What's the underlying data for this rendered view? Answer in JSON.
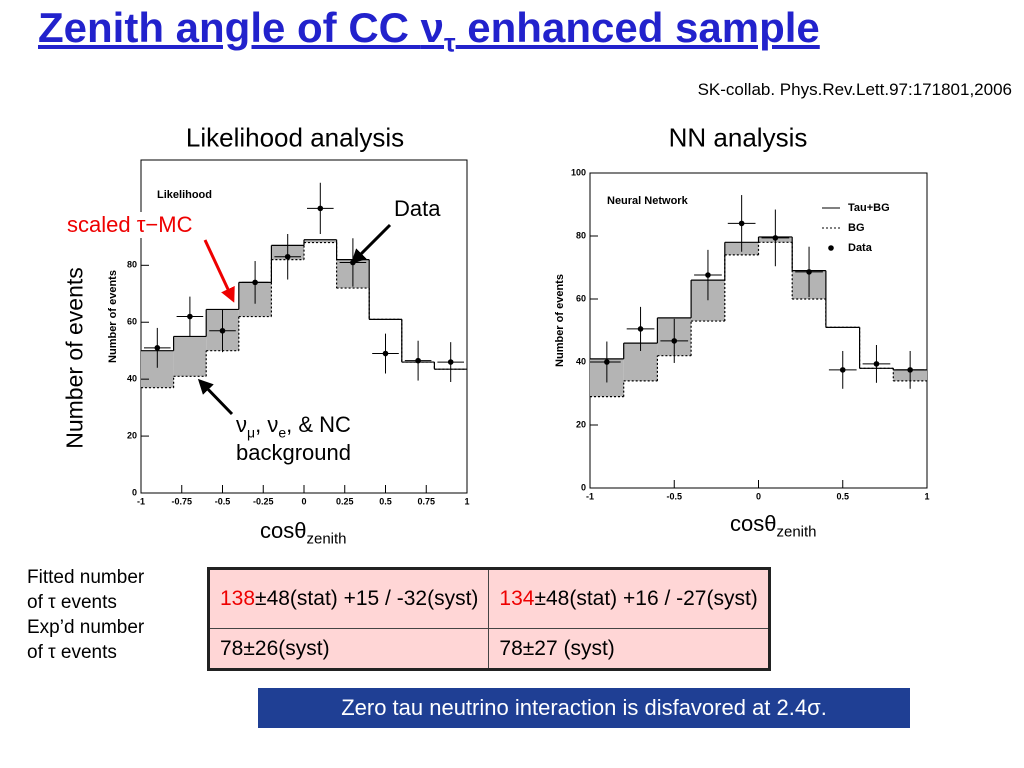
{
  "title": {
    "text": "Zenith angle of CC ",
    "symbol": "ν",
    "sub": "τ",
    "end": " enhanced sample"
  },
  "reference": "SK-collab. Phys.Rev.Lett.97:171801,2006",
  "ylabel_big": "Number of events",
  "annotations": {
    "scaled": "scaled τ−MC",
    "data": "Data",
    "bg_parts": [
      "ν",
      "μ",
      ", ν",
      "e",
      ", & NC"
    ],
    "bg_line2": "background"
  },
  "chart_data": [
    {
      "type": "histogram",
      "title": "Likelihood analysis",
      "inner_label": "Likelihood",
      "bins": [
        -1,
        -0.8,
        -0.6,
        -0.4,
        -0.2,
        0,
        0.2,
        0.4,
        0.6,
        0.8,
        1
      ],
      "xlim": [
        -1,
        1
      ],
      "xticks": [
        -1,
        -0.75,
        -0.5,
        -0.25,
        0,
        0.25,
        0.5,
        0.75,
        1
      ],
      "ylim": [
        0,
        117
      ],
      "yticks": [
        0,
        20,
        40,
        60,
        80
      ],
      "xlabel": "cosθ",
      "xlabel_sub": "zenith",
      "ylabel": "Number of events",
      "shade_color": "#b4b4b4",
      "legend": false,
      "series": [
        {
          "style": "solid",
          "values": [
            50,
            55,
            64.5,
            74,
            87,
            89,
            82,
            61,
            46,
            43.5
          ]
        },
        {
          "style": "dotted",
          "values": [
            37,
            41,
            50,
            62,
            82,
            88,
            72,
            61,
            46,
            43.5
          ]
        },
        {
          "style": "points",
          "values": [
            51,
            62,
            57,
            74,
            83,
            100,
            81,
            49,
            46.5,
            46
          ],
          "errors": [
            7,
            7,
            7.5,
            7.5,
            8,
            9,
            8.5,
            7,
            7,
            7
          ]
        }
      ]
    },
    {
      "type": "histogram",
      "title": "NN analysis",
      "inner_label": "Neural Network",
      "bins": [
        -1,
        -0.8,
        -0.6,
        -0.4,
        -0.2,
        0,
        0.2,
        0.4,
        0.6,
        0.8,
        1
      ],
      "xlim": [
        -1,
        1
      ],
      "xticks": [
        -1,
        -0.5,
        0,
        0.5,
        1
      ],
      "ylim": [
        0,
        100
      ],
      "yticks": [
        0,
        20,
        40,
        60,
        80,
        100
      ],
      "xlabel": "cosθ",
      "xlabel_sub": "zenith",
      "ylabel": "Number of events",
      "shade_color": "#b4b4b4",
      "legend": true,
      "series": [
        {
          "name": "Tau+BG",
          "style": "solid",
          "values": [
            41,
            46,
            54,
            66,
            78,
            79.7,
            69,
            51,
            38,
            37.5
          ]
        },
        {
          "name": "BG",
          "style": "dotted",
          "values": [
            29,
            34,
            42,
            53,
            74,
            78,
            60,
            51,
            38,
            34
          ]
        },
        {
          "name": "Data",
          "style": "points",
          "values": [
            40,
            50.5,
            46.7,
            67.6,
            84,
            79.4,
            68.6,
            37.5,
            39.4,
            37.5
          ],
          "errors": [
            6.5,
            7,
            7,
            8,
            9,
            9,
            8,
            6,
            6,
            6
          ]
        }
      ]
    }
  ],
  "row_labels": [
    "Fitted number",
    "of  τ events",
    "Exp’d number",
    "of τ events"
  ],
  "table": {
    "rows": [
      [
        {
          "highlight": "138",
          "rest": "±48(stat) +15 / -32(syst)"
        },
        {
          "highlight": "134",
          "rest": "±48(stat) +16 / -27(syst)"
        }
      ],
      [
        {
          "rest": "78±26(syst)"
        },
        {
          "rest": "78±27 (syst)"
        }
      ]
    ]
  },
  "note": "Zero tau neutrino interaction is disfavored at 2.4σ."
}
